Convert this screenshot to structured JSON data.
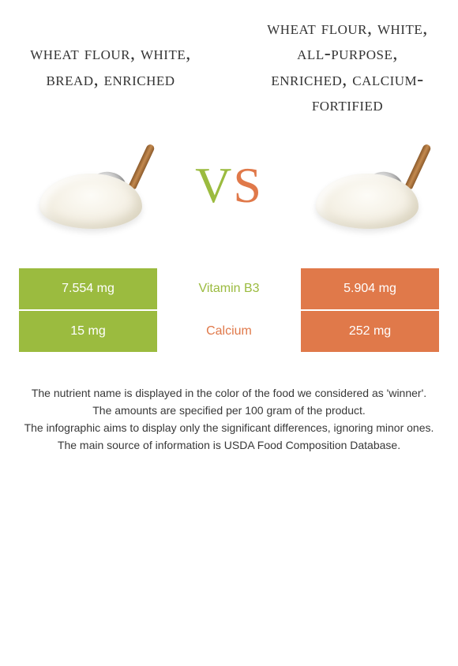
{
  "left_title": "wheat flour, white, bread, enriched",
  "right_title": "wheat flour, white, all-purpose, enriched, calcium-fortified",
  "vs": {
    "v": "V",
    "s": "S"
  },
  "colors": {
    "green": "#9bbb3f",
    "orange": "#e0794a",
    "text": "#333333",
    "bg": "#ffffff"
  },
  "rows": [
    {
      "nutrient": "Vitamin B3",
      "left_value": "7.554 mg",
      "right_value": "5.904 mg",
      "winner": "left"
    },
    {
      "nutrient": "Calcium",
      "left_value": "15 mg",
      "right_value": "252 mg",
      "winner": "right"
    }
  ],
  "footer": [
    "The nutrient name is displayed in the color of the food we considered as 'winner'.",
    "The amounts are specified per 100 gram of the product.",
    "The infographic aims to display only the significant differences, ignoring minor ones.",
    "The main source of information is USDA Food Composition Database."
  ]
}
